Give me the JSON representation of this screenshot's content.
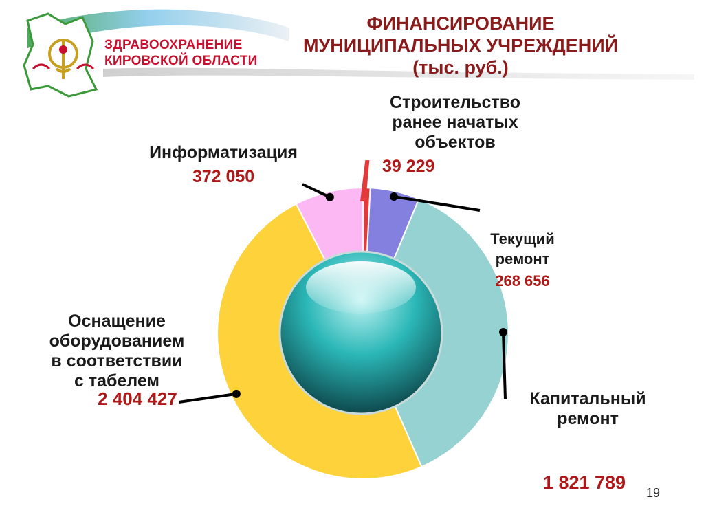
{
  "header": {
    "logo_line1": "ЗДРАВООХРАНЕНИЕ",
    "logo_line2": "КИРОВСКОЙ ОБЛАСТИ",
    "title_line1": "ФИНАНСИРОВАНИЕ",
    "title_line2": "МУНИЦИПАЛЬНЫХ УЧРЕЖДЕНИЙ",
    "title_line3": "(тыс. руб.)"
  },
  "chart_data": {
    "type": "pie",
    "title": "ФИНАНСИРОВАНИЕ МУНИЦИПАЛЬНЫХ УЧРЕЖДЕНИЙ (тыс. руб.)",
    "unit": "тыс. руб.",
    "slices": [
      {
        "label": "Строительство ранее начатых объектов",
        "value": 39229,
        "value_label": "39 229",
        "color": "#e23a3a"
      },
      {
        "label": "Текущий ремонт",
        "value": 268656,
        "value_label": "268 656",
        "color": "#8480e0"
      },
      {
        "label": "Капитальный ремонт",
        "value": 1821789,
        "value_label": "1 821 789",
        "color": "#96d2d2"
      },
      {
        "label": "Оснащение оборудованием в соответствии с табелем",
        "value": 2404427,
        "value_label": "2 404 427",
        "color": "#fdd23a"
      },
      {
        "label": "Информатизация",
        "value": 372050,
        "value_label": "372 050",
        "color": "#fbb8f3"
      }
    ]
  },
  "labels": {
    "construction": [
      "Строительство",
      "ранее начатых",
      "объектов"
    ],
    "current_repair": [
      "Текущий",
      "ремонт"
    ],
    "capital_repair": [
      "Капитальный",
      "ремонт"
    ],
    "equipment": [
      "Оснащение",
      "оборудованием",
      "в соответствии",
      "с табелем"
    ],
    "it": [
      "Информатизация"
    ]
  },
  "footer": {
    "page_number": "19"
  }
}
